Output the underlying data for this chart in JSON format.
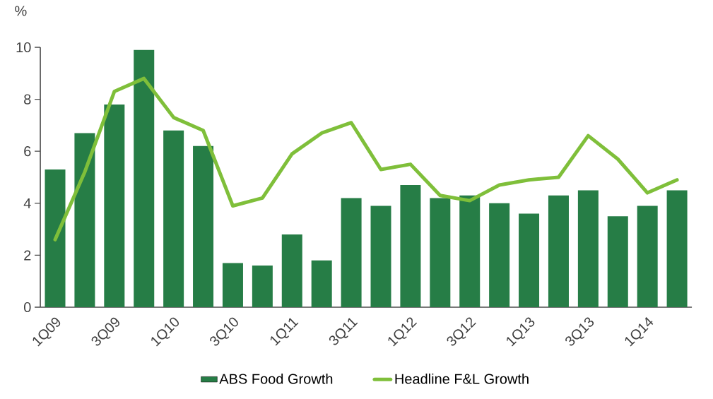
{
  "chart_data": {
    "type": "bar",
    "ylabel": "%",
    "categories": [
      "1Q09",
      null,
      "3Q09",
      null,
      "1Q10",
      null,
      "3Q10",
      null,
      "1Q11",
      null,
      "3Q11",
      null,
      "1Q12",
      null,
      "3Q12",
      null,
      "1Q13",
      null,
      "3Q13",
      null,
      "1Q14",
      null
    ],
    "series": [
      {
        "name": "ABS Food Growth",
        "color": "#267d46",
        "values": [
          5.3,
          6.7,
          7.8,
          9.9,
          6.8,
          6.2,
          1.7,
          1.6,
          2.8,
          1.8,
          4.2,
          3.9,
          4.7,
          4.2,
          4.3,
          4.0,
          3.6,
          4.3,
          4.5,
          3.5,
          3.9,
          4.5
        ]
      },
      {
        "name": "Headline F&L Growth",
        "type": "line",
        "color": "#7fbf3a",
        "values": [
          2.6,
          5.2,
          8.3,
          8.8,
          7.3,
          6.8,
          3.9,
          4.2,
          5.9,
          6.7,
          7.1,
          5.3,
          5.5,
          4.3,
          4.1,
          4.7,
          4.9,
          5.0,
          6.6,
          5.7,
          4.4,
          4.9
        ]
      }
    ],
    "ylim": [
      0,
      10
    ],
    "yticks": [
      0,
      2,
      4,
      6,
      8,
      10
    ],
    "legend": "bottom"
  }
}
